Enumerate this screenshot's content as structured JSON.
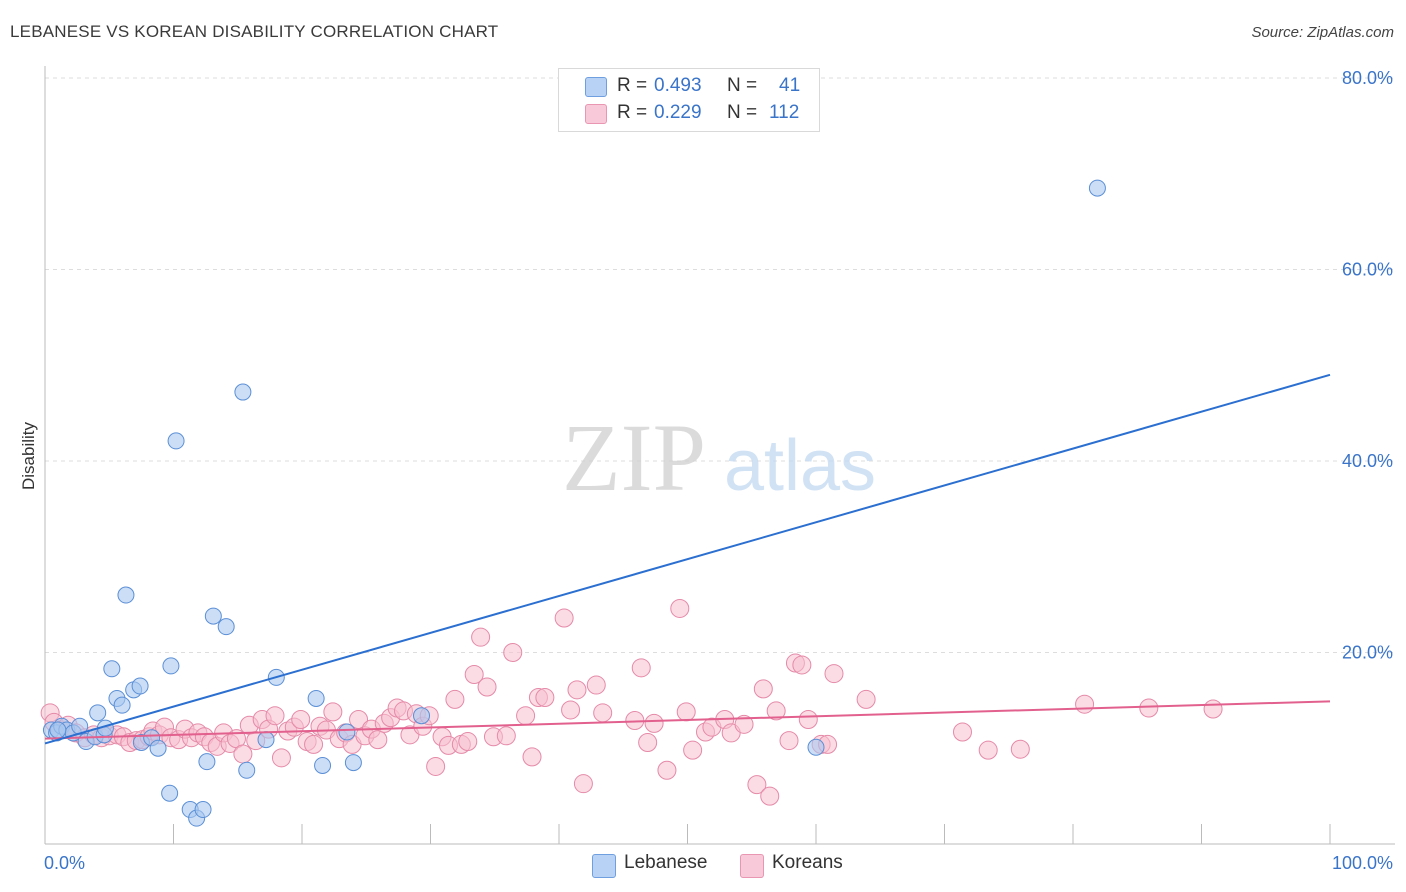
{
  "header": {
    "title": "LEBANESE VS KOREAN DISABILITY CORRELATION CHART",
    "source": "Source: ZipAtlas.com"
  },
  "legend_top": {
    "rows": [
      {
        "r_label": "R =",
        "r_value": "0.493",
        "n_label": "N =",
        "n_value": "41"
      },
      {
        "r_label": "R =",
        "r_value": "0.229",
        "n_label": "N =",
        "n_value": "112"
      }
    ]
  },
  "legend_bottom": {
    "items": [
      {
        "label": "Lebanese"
      },
      {
        "label": "Koreans"
      }
    ]
  },
  "watermark": {
    "zip": "ZIP",
    "atlas": "atlas"
  },
  "colors": {
    "lebanese_fill": "#a9c8f0",
    "lebanese_stroke": "#5b8fd6",
    "lebanese_line": "#2b6fd0",
    "koreans_fill": "#f7bfd0",
    "koreans_stroke": "#e58aa8",
    "koreans_line": "#e2608d",
    "tick_text": "#3a74c9",
    "grid": "#dddddd"
  },
  "chart_data": {
    "type": "scatter",
    "title": "LEBANESE VS KOREAN DISABILITY CORRELATION CHART",
    "xlabel": "",
    "ylabel": "Disability",
    "xlim": [
      0,
      100
    ],
    "ylim": [
      0,
      80
    ],
    "x_tick_labels": [
      "0.0%",
      "100.0%"
    ],
    "y_ticks": [
      20,
      40,
      60,
      80
    ],
    "y_tick_labels": [
      "20.0%",
      "40.0%",
      "60.0%",
      "80.0%"
    ],
    "grid": true,
    "legend_position": "top-center",
    "series": [
      {
        "name": "Lebanese",
        "R": 0.493,
        "N": 41,
        "trend": {
          "x": [
            0,
            100
          ],
          "y": [
            10.5,
            49.0
          ]
        },
        "points": [
          [
            0.5,
            11.9
          ],
          [
            0.9,
            11.6
          ],
          [
            1.3,
            12.3
          ],
          [
            1.7,
            11.9
          ],
          [
            2.2,
            11.6
          ],
          [
            2.7,
            12.3
          ],
          [
            3.2,
            10.7
          ],
          [
            3.9,
            11.2
          ],
          [
            4.1,
            13.7
          ],
          [
            4.6,
            11.4
          ],
          [
            4.7,
            12.1
          ],
          [
            5.2,
            18.3
          ],
          [
            5.6,
            15.2
          ],
          [
            6.0,
            14.5
          ],
          [
            6.3,
            26.0
          ],
          [
            6.9,
            16.1
          ],
          [
            7.4,
            16.5
          ],
          [
            7.5,
            10.6
          ],
          [
            8.3,
            11.1
          ],
          [
            8.8,
            10.0
          ],
          [
            9.8,
            18.6
          ],
          [
            10.2,
            42.1
          ],
          [
            9.7,
            5.3
          ],
          [
            11.3,
            3.6
          ],
          [
            11.8,
            2.7
          ],
          [
            12.3,
            3.6
          ],
          [
            12.6,
            8.6
          ],
          [
            13.1,
            23.8
          ],
          [
            14.1,
            22.7
          ],
          [
            15.4,
            47.2
          ],
          [
            15.7,
            7.7
          ],
          [
            17.2,
            10.9
          ],
          [
            18.0,
            17.4
          ],
          [
            21.1,
            15.2
          ],
          [
            21.6,
            8.2
          ],
          [
            23.5,
            11.7
          ],
          [
            24.0,
            8.5
          ],
          [
            29.3,
            13.4
          ],
          [
            60.0,
            10.1
          ],
          [
            81.9,
            68.5
          ],
          [
            1.0,
            11.9
          ]
        ]
      },
      {
        "name": "Koreans",
        "R": 0.229,
        "N": 112,
        "trend": {
          "x": [
            0,
            100
          ],
          "y": [
            11.0,
            14.9
          ]
        },
        "points": [
          [
            0.4,
            13.7
          ],
          [
            0.7,
            12.7
          ],
          [
            1.2,
            11.9
          ],
          [
            1.8,
            12.4
          ],
          [
            2.4,
            11.6
          ],
          [
            3.1,
            11.1
          ],
          [
            3.8,
            11.4
          ],
          [
            4.4,
            11.1
          ],
          [
            5.0,
            11.3
          ],
          [
            5.6,
            11.4
          ],
          [
            6.1,
            11.2
          ],
          [
            6.6,
            10.6
          ],
          [
            7.1,
            10.8
          ],
          [
            7.6,
            10.9
          ],
          [
            8.1,
            11.2
          ],
          [
            8.4,
            11.8
          ],
          [
            8.9,
            11.4
          ],
          [
            9.3,
            12.2
          ],
          [
            9.8,
            11.1
          ],
          [
            10.4,
            10.9
          ],
          [
            10.9,
            12.0
          ],
          [
            11.4,
            11.1
          ],
          [
            11.9,
            11.6
          ],
          [
            12.4,
            11.2
          ],
          [
            12.9,
            10.6
          ],
          [
            13.4,
            10.2
          ],
          [
            13.9,
            11.6
          ],
          [
            14.4,
            10.5
          ],
          [
            14.9,
            11.0
          ],
          [
            15.4,
            9.4
          ],
          [
            15.9,
            12.4
          ],
          [
            16.4,
            10.8
          ],
          [
            16.9,
            13.0
          ],
          [
            17.4,
            12.0
          ],
          [
            17.9,
            13.4
          ],
          [
            18.4,
            9.0
          ],
          [
            18.9,
            11.8
          ],
          [
            19.4,
            12.2
          ],
          [
            19.9,
            13.0
          ],
          [
            20.4,
            10.7
          ],
          [
            20.9,
            10.4
          ],
          [
            21.4,
            12.3
          ],
          [
            21.9,
            11.9
          ],
          [
            22.4,
            13.8
          ],
          [
            22.9,
            11.0
          ],
          [
            23.4,
            11.6
          ],
          [
            23.9,
            10.4
          ],
          [
            24.4,
            13.0
          ],
          [
            24.9,
            11.3
          ],
          [
            25.4,
            12.0
          ],
          [
            25.9,
            10.9
          ],
          [
            26.4,
            12.6
          ],
          [
            26.9,
            13.2
          ],
          [
            27.4,
            14.2
          ],
          [
            27.9,
            13.9
          ],
          [
            28.4,
            11.4
          ],
          [
            28.9,
            13.6
          ],
          [
            29.4,
            12.3
          ],
          [
            29.9,
            13.4
          ],
          [
            30.4,
            8.1
          ],
          [
            30.9,
            11.2
          ],
          [
            31.4,
            10.3
          ],
          [
            31.9,
            15.1
          ],
          [
            32.4,
            10.4
          ],
          [
            32.9,
            10.7
          ],
          [
            33.4,
            17.7
          ],
          [
            33.9,
            21.6
          ],
          [
            34.4,
            16.4
          ],
          [
            34.9,
            11.2
          ],
          [
            35.9,
            11.3
          ],
          [
            36.4,
            20.0
          ],
          [
            37.4,
            13.4
          ],
          [
            37.9,
            9.1
          ],
          [
            38.4,
            15.3
          ],
          [
            38.9,
            15.3
          ],
          [
            40.4,
            23.6
          ],
          [
            40.9,
            14.0
          ],
          [
            41.4,
            16.1
          ],
          [
            41.9,
            6.3
          ],
          [
            42.9,
            16.6
          ],
          [
            43.4,
            13.7
          ],
          [
            45.9,
            12.9
          ],
          [
            46.4,
            18.4
          ],
          [
            46.9,
            10.6
          ],
          [
            47.4,
            12.6
          ],
          [
            48.4,
            7.7
          ],
          [
            49.4,
            24.6
          ],
          [
            49.9,
            13.8
          ],
          [
            50.4,
            9.8
          ],
          [
            51.4,
            11.7
          ],
          [
            51.9,
            12.2
          ],
          [
            52.9,
            13.0
          ],
          [
            53.4,
            11.6
          ],
          [
            54.4,
            12.5
          ],
          [
            55.4,
            6.2
          ],
          [
            55.9,
            16.2
          ],
          [
            56.4,
            5.0
          ],
          [
            56.9,
            13.9
          ],
          [
            57.9,
            10.8
          ],
          [
            58.4,
            18.9
          ],
          [
            58.9,
            18.7
          ],
          [
            59.4,
            13.0
          ],
          [
            60.4,
            10.4
          ],
          [
            60.9,
            10.4
          ],
          [
            61.4,
            17.8
          ],
          [
            63.9,
            15.1
          ],
          [
            71.4,
            11.7
          ],
          [
            73.4,
            9.8
          ],
          [
            75.9,
            9.9
          ],
          [
            80.9,
            14.6
          ],
          [
            85.9,
            14.2
          ],
          [
            90.9,
            14.1
          ]
        ]
      }
    ]
  }
}
